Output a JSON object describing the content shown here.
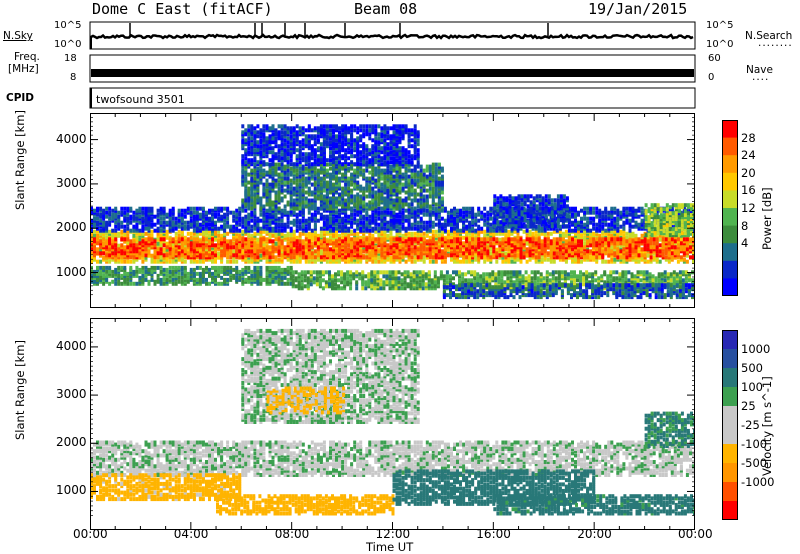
{
  "header": {
    "station": "Dome C East (fitACF)",
    "beam": "Beam 08",
    "date": "19/Jan/2015"
  },
  "panels": {
    "nsky": {
      "label": "N.Sky",
      "ticks": [
        "10^5",
        "10^0"
      ],
      "right_label": "N.Search",
      "right_ticks": [
        "10^5",
        "10^0"
      ]
    },
    "freq": {
      "label_line1": "Freq.",
      "label_line2": "[MHz]",
      "ticks": [
        "18",
        "8"
      ],
      "right_label": "Nave",
      "right_ticks": [
        "60",
        "0"
      ]
    },
    "cpid": {
      "label": "CPID",
      "text": "twofsound 3501"
    }
  },
  "chart_data": [
    {
      "type": "heatmap",
      "name": "power",
      "ylabel": "Slant Range [km]",
      "yticks": [
        "1000",
        "2000",
        "3000",
        "4000"
      ],
      "ylim": [
        200,
        4600
      ],
      "colorbar": {
        "label": "Power [dB]",
        "ticks": [
          "28",
          "24",
          "20",
          "16",
          "12",
          "8",
          "4"
        ],
        "colors": [
          "#ff0000",
          "#ff5a00",
          "#ff9a00",
          "#ffc800",
          "#c8dc28",
          "#50b450",
          "#3c8c3c",
          "#1e6e8c",
          "#0a28c8",
          "#0000ff"
        ]
      },
      "bands": [
        {
          "t0": 0.0,
          "t1": 24.0,
          "r0": 1200,
          "r1": 1900,
          "value": 20
        },
        {
          "t0": 0.0,
          "t1": 24.0,
          "r0": 1300,
          "r1": 1750,
          "value": 27
        },
        {
          "t0": 0.0,
          "t1": 8.0,
          "r0": 700,
          "r1": 1100,
          "value": 12
        },
        {
          "t0": 8.0,
          "t1": 24.0,
          "r0": 600,
          "r1": 1000,
          "value": 14
        },
        {
          "t0": 14.0,
          "t1": 24.0,
          "r0": 400,
          "r1": 700,
          "value": 8
        },
        {
          "t0": 0.0,
          "t1": 24.0,
          "r0": 1900,
          "r1": 2400,
          "value": 6
        },
        {
          "t0": 6.0,
          "t1": 14.0,
          "r0": 2400,
          "r1": 3400,
          "value": 10
        },
        {
          "t0": 6.0,
          "t1": 13.0,
          "r0": 3400,
          "r1": 4300,
          "value": 5
        },
        {
          "t0": 16.0,
          "t1": 19.0,
          "r0": 2000,
          "r1": 2700,
          "value": 6
        },
        {
          "t0": 22.0,
          "t1": 24.0,
          "r0": 1800,
          "r1": 2500,
          "value": 16
        }
      ]
    },
    {
      "type": "heatmap",
      "name": "velocity",
      "ylabel": "Slant Range [km]",
      "yticks": [
        "1000",
        "2000",
        "3000",
        "4000"
      ],
      "ylim": [
        200,
        4600
      ],
      "colorbar": {
        "label": "Velocity [m s^-1]",
        "ticks": [
          "1000",
          "500",
          "100",
          "25",
          "-25",
          "-100",
          "-500",
          "-1000"
        ],
        "colors": [
          "#2828b4",
          "#2850a0",
          "#287878",
          "#3ca050",
          "#c8c8c8",
          "#c8c8c8",
          "#ffb400",
          "#ff9600",
          "#ff5000",
          "#ff0000"
        ]
      },
      "bands": [
        {
          "t0": 0.0,
          "t1": 24.0,
          "r0": 1300,
          "r1": 2000,
          "value": 0
        },
        {
          "t0": 0.0,
          "t1": 6.0,
          "r0": 800,
          "r1": 1300,
          "value": -150
        },
        {
          "t0": 5.0,
          "t1": 12.0,
          "r0": 500,
          "r1": 900,
          "value": -200
        },
        {
          "t0": 12.0,
          "t1": 20.0,
          "r0": 700,
          "r1": 1400,
          "value": 300
        },
        {
          "t0": 16.0,
          "t1": 24.0,
          "r0": 500,
          "r1": 900,
          "value": 150
        },
        {
          "t0": 6.0,
          "t1": 13.0,
          "r0": 2400,
          "r1": 4300,
          "value": 10
        },
        {
          "t0": 7.0,
          "t1": 10.0,
          "r0": 2600,
          "r1": 3100,
          "value": -120
        },
        {
          "t0": 22.0,
          "t1": 24.0,
          "r0": 1900,
          "r1": 2600,
          "value": 120
        }
      ]
    }
  ],
  "xaxis": {
    "label": "Time UT",
    "ticks": [
      "00:00",
      "04:00",
      "08:00",
      "12:00",
      "16:00",
      "20:00",
      "00:00"
    ],
    "xlim": [
      0,
      24
    ]
  }
}
